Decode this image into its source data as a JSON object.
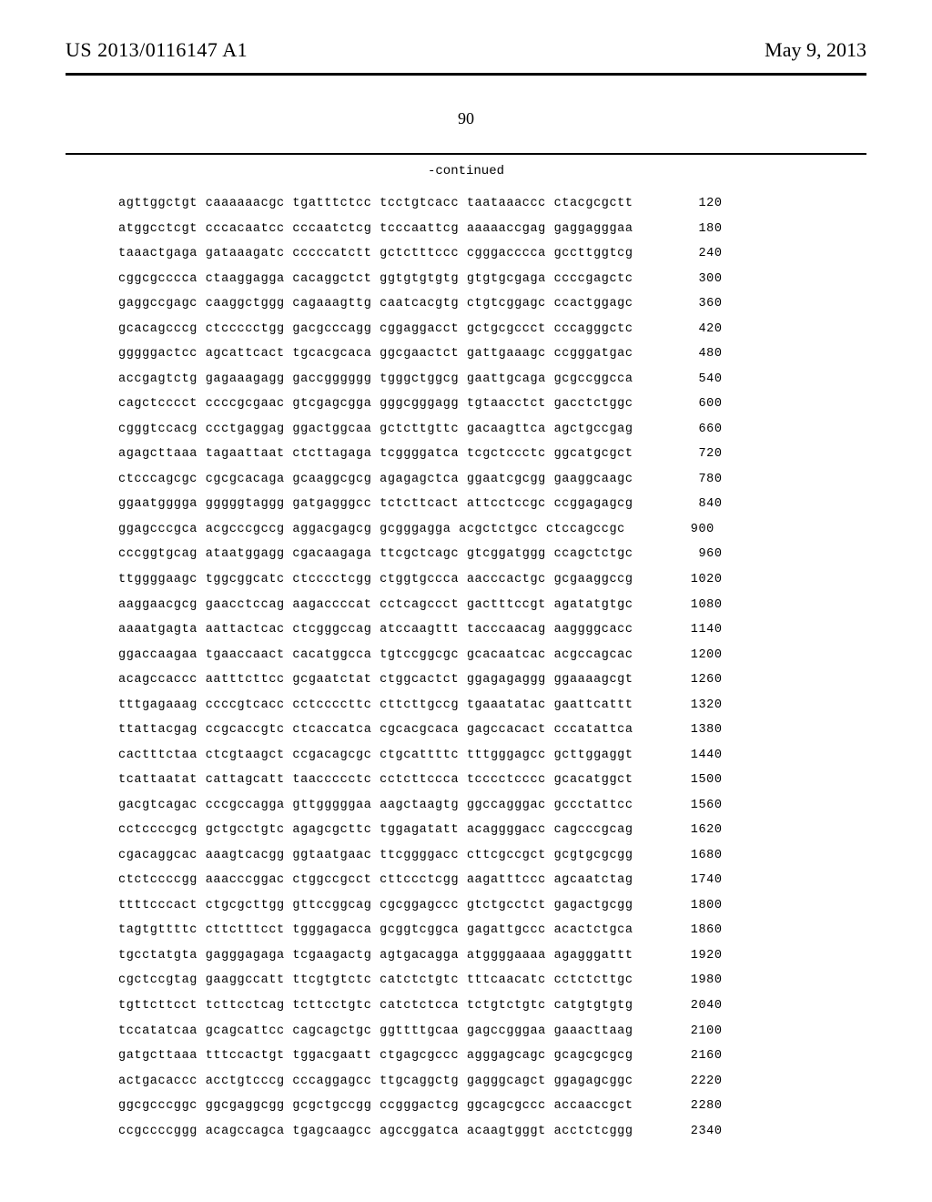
{
  "header": {
    "publication_id": "US 2013/0116147 A1",
    "publication_date": "May 9, 2013"
  },
  "page_number": "90",
  "continued_label": "-continued",
  "sequence": {
    "font_family": "Courier New",
    "font_size_pt": 10,
    "rows": [
      {
        "text": "agttggctgt caaaaaacgc tgatttctcc tcctgtcacc taataaaccc ctacgcgctt",
        "pos": "120"
      },
      {
        "text": "atggcctcgt cccacaatcc cccaatctcg tcccaattcg aaaaaccgag gaggagggaa",
        "pos": "180"
      },
      {
        "text": "taaactgaga gataaagatc cccccatctt gctctttccc cgggacccca gccttggtcg",
        "pos": "240"
      },
      {
        "text": "cggcgcccca ctaaggagga cacaggctct ggtgtgtgtg gtgtgcgaga ccccgagctc",
        "pos": "300"
      },
      {
        "text": "gaggccgagc caaggctggg cagaaagttg caatcacgtg ctgtcggagc ccactggagc",
        "pos": "360"
      },
      {
        "text": "gcacagcccg ctccccctgg gacgcccagg cggaggacct gctgcgccct cccagggctc",
        "pos": "420"
      },
      {
        "text": "gggggactcc agcattcact tgcacgcaca ggcgaactct gattgaaagc ccgggatgac",
        "pos": "480"
      },
      {
        "text": "accgagtctg gagaaagagg gaccgggggg tgggctggcg gaattgcaga gcgccggcca",
        "pos": "540"
      },
      {
        "text": "cagctcccct ccccgcgaac gtcgagcgga gggcgggagg tgtaacctct gacctctggc",
        "pos": "600"
      },
      {
        "text": "cgggtccacg ccctgaggag ggactggcaa gctcttgttc gacaagttca agctgccgag",
        "pos": "660"
      },
      {
        "text": "agagcttaaa tagaattaat ctcttagaga tcggggatca tcgctccctc ggcatgcgct",
        "pos": "720"
      },
      {
        "text": "ctcccagcgc cgcgcacaga gcaaggcgcg agagagctca ggaatcgcgg gaaggcaagc",
        "pos": "780"
      },
      {
        "text": "ggaatgggga gggggtaggg gatgagggcc tctcttcact attcctccgc ccggagagcg",
        "pos": "840"
      },
      {
        "text": "ggagcccgca acgcccgccg aggacgagcg gcgggagga acgctctgcc ctccagccgc",
        "pos": "900"
      },
      {
        "text": "cccggtgcag ataatggagg cgacaagaga ttcgctcagc gtcggatggg ccagctctgc",
        "pos": "960"
      },
      {
        "text": "ttggggaagc tggcggcatc ctcccctcgg ctggtgccca aacccactgc gcgaaggccg",
        "pos": "1020"
      },
      {
        "text": "aaggaacgcg gaacctccag aagaccccat cctcagccct gactttccgt agatatgtgc",
        "pos": "1080"
      },
      {
        "text": "aaaatgagta aattactcac ctcgggccag atccaagttt tacccaacag aaggggcacc",
        "pos": "1140"
      },
      {
        "text": "ggaccaagaa tgaaccaact cacatggcca tgtccggcgc gcacaatcac acgccagcac",
        "pos": "1200"
      },
      {
        "text": "acagccaccc aatttcttcc gcgaatctat ctggcactct ggagagaggg ggaaaagcgt",
        "pos": "1260"
      },
      {
        "text": "tttgagaaag ccccgtcacc cctccccttc cttcttgccg tgaaatatac gaattcattt",
        "pos": "1320"
      },
      {
        "text": "ttattacgag ccgcaccgtc ctcaccatca cgcacgcaca gagccacact cccatattca",
        "pos": "1380"
      },
      {
        "text": "cactttctaa ctcgtaagct ccgacagcgc ctgcattttc tttgggagcc gcttggaggt",
        "pos": "1440"
      },
      {
        "text": "tcattaatat cattagcatt taaccccctc cctcttccca tcccctcccc gcacatggct",
        "pos": "1500"
      },
      {
        "text": "gacgtcagac cccgccagga gttgggggaa aagctaagtg ggccagggac gccctattcc",
        "pos": "1560"
      },
      {
        "text": "cctccccgcg gctgcctgtc agagcgcttc tggagatatt acaggggacc cagcccgcag",
        "pos": "1620"
      },
      {
        "text": "cgacaggcac aaagtcacgg ggtaatgaac ttcggggacc cttcgccgct gcgtgcgcgg",
        "pos": "1680"
      },
      {
        "text": "ctctccccgg aaacccggac ctggccgcct cttccctcgg aagatttccc agcaatctag",
        "pos": "1740"
      },
      {
        "text": "ttttcccact ctgcgcttgg gttccggcag cgcggagccc gtctgcctct gagactgcgg",
        "pos": "1800"
      },
      {
        "text": "tagtgttttc cttctttcct tgggagacca gcggtcggca gagattgccc acactctgca",
        "pos": "1860"
      },
      {
        "text": "tgcctatgta gagggagaga tcgaagactg agtgacagga atggggaaaa agagggattt",
        "pos": "1920"
      },
      {
        "text": "cgctccgtag gaaggccatt ttcgtgtctc catctctgtc tttcaacatc cctctcttgc",
        "pos": "1980"
      },
      {
        "text": "tgttcttcct tcttcctcag tcttcctgtc catctctcca tctgtctgtc catgtgtgtg",
        "pos": "2040"
      },
      {
        "text": "tccatatcaa gcagcattcc cagcagctgc ggttttgcaa gagccgggaa gaaacttaag",
        "pos": "2100"
      },
      {
        "text": "gatgcttaaa tttccactgt tggacgaatt ctgagcgccc agggagcagc gcagcgcgcg",
        "pos": "2160"
      },
      {
        "text": "actgacaccc acctgtcccg cccaggagcc ttgcaggctg gagggcagct ggagagcggc",
        "pos": "2220"
      },
      {
        "text": "ggcgcccggc ggcgaggcgg gcgctgccgg ccgggactcg ggcagcgccc accaaccgct",
        "pos": "2280"
      },
      {
        "text": "ccgccccggg acagccagca tgagcaagcc agccggatca acaagtgggt acctctcggg",
        "pos": "2340"
      }
    ]
  }
}
